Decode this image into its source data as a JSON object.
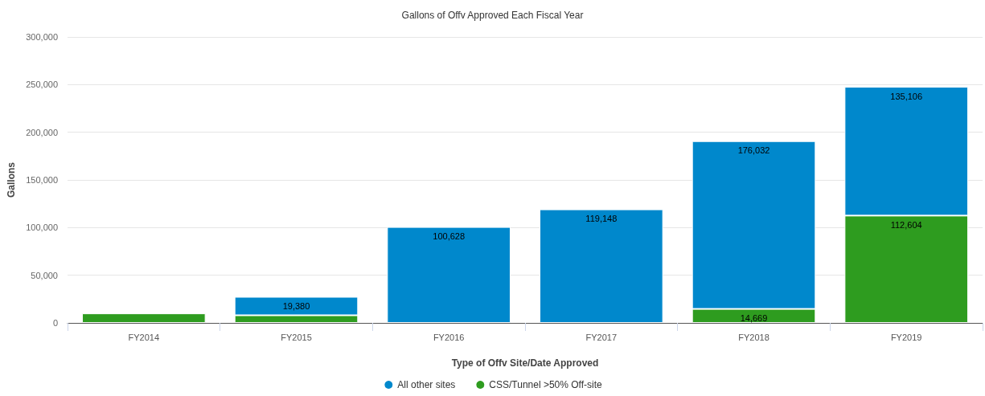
{
  "chart_data": {
    "type": "bar",
    "title": "Gallons of Offv Approved Each Fiscal Year",
    "xlabel": "Type of Offv Site/Date Approved",
    "ylabel": "Gallons",
    "categories": [
      "FY2014",
      "FY2015",
      "FY2016",
      "FY2017",
      "FY2018",
      "FY2019"
    ],
    "stacked": true,
    "series": [
      {
        "name": "CSS/Tunnel >50% Off-site",
        "color": "#2e9c1f",
        "values": [
          10000,
          8000,
          null,
          null,
          14669,
          112604
        ],
        "value_labels": [
          null,
          null,
          null,
          null,
          "14,669",
          "112,604"
        ]
      },
      {
        "name": "All other sites",
        "color": "#0088cc",
        "values": [
          null,
          19380,
          100628,
          119148,
          176032,
          135106
        ],
        "value_labels": [
          null,
          "19,380",
          "100,628",
          "119,148",
          "176,032",
          "135,106"
        ]
      }
    ],
    "ylim": [
      0,
      300000
    ],
    "yticks": [
      {
        "value": 0,
        "label": "0"
      },
      {
        "value": 50000,
        "label": "50,000"
      },
      {
        "value": 100000,
        "label": "100,000"
      },
      {
        "value": 150000,
        "label": "150,000"
      },
      {
        "value": 200000,
        "label": "200,000"
      },
      {
        "value": 250000,
        "label": "250,000"
      },
      {
        "value": 300000,
        "label": "300,000"
      }
    ],
    "grid": "y",
    "legend": "bottom"
  }
}
